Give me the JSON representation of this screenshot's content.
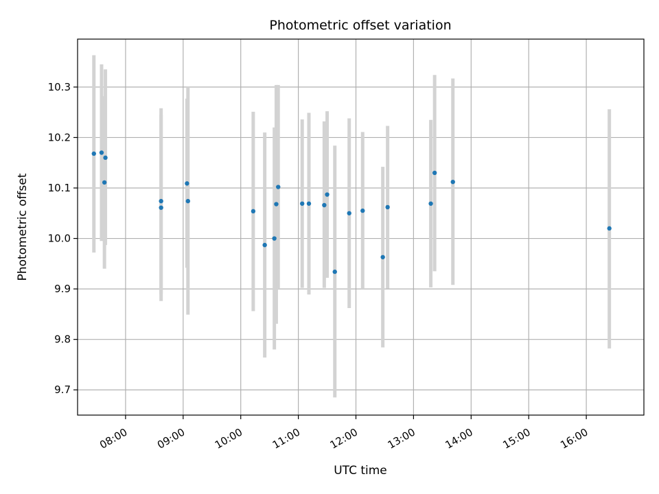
{
  "chart_data": {
    "type": "scatter",
    "title": "Photometric offset variation",
    "xlabel": "UTC time",
    "ylabel": "Photometric offset",
    "x_ticks": [
      "08:00",
      "09:00",
      "10:00",
      "11:00",
      "12:00",
      "13:00",
      "14:00",
      "15:00",
      "16:00"
    ],
    "y_ticks": [
      "9.7",
      "9.8",
      "9.9",
      "10.0",
      "10.1",
      "10.2",
      "10.3"
    ],
    "xlim": [
      "07:10",
      "17:00"
    ],
    "ylim": [
      9.65,
      10.395
    ],
    "grid": true,
    "points": [
      {
        "x": "07:27",
        "y": 10.168,
        "lo": 9.972,
        "hi": 10.363
      },
      {
        "x": "07:35",
        "y": 10.17,
        "lo": 9.995,
        "hi": 10.345
      },
      {
        "x": "07:38",
        "y": 10.111,
        "lo": 9.94,
        "hi": 10.282
      },
      {
        "x": "07:39",
        "y": 10.16,
        "lo": 9.987,
        "hi": 10.335
      },
      {
        "x": "08:37",
        "y": 10.061,
        "lo": 9.876,
        "hi": 10.245
      },
      {
        "x": "08:37",
        "y": 10.074,
        "lo": 9.89,
        "hi": 10.258
      },
      {
        "x": "09:04",
        "y": 10.109,
        "lo": 9.942,
        "hi": 10.277
      },
      {
        "x": "09:05",
        "y": 10.074,
        "lo": 9.849,
        "hi": 10.3
      },
      {
        "x": "10:13",
        "y": 10.054,
        "lo": 9.856,
        "hi": 10.251
      },
      {
        "x": "10:25",
        "y": 9.987,
        "lo": 9.764,
        "hi": 10.21
      },
      {
        "x": "10:35",
        "y": 10.0,
        "lo": 9.78,
        "hi": 10.22
      },
      {
        "x": "10:37",
        "y": 10.068,
        "lo": 9.831,
        "hi": 10.304
      },
      {
        "x": "10:39",
        "y": 10.102,
        "lo": 9.9,
        "hi": 10.304
      },
      {
        "x": "11:04",
        "y": 10.069,
        "lo": 9.902,
        "hi": 10.236
      },
      {
        "x": "11:11",
        "y": 10.069,
        "lo": 9.889,
        "hi": 10.249
      },
      {
        "x": "11:27",
        "y": 10.066,
        "lo": 9.902,
        "hi": 10.232
      },
      {
        "x": "11:30",
        "y": 10.087,
        "lo": 9.922,
        "hi": 10.252
      },
      {
        "x": "11:38",
        "y": 9.934,
        "lo": 9.685,
        "hi": 10.184
      },
      {
        "x": "11:53",
        "y": 10.05,
        "lo": 9.862,
        "hi": 10.238
      },
      {
        "x": "12:07",
        "y": 10.055,
        "lo": 9.9,
        "hi": 10.211
      },
      {
        "x": "12:28",
        "y": 9.963,
        "lo": 9.784,
        "hi": 10.142
      },
      {
        "x": "12:33",
        "y": 10.062,
        "lo": 9.901,
        "hi": 10.223
      },
      {
        "x": "13:18",
        "y": 10.069,
        "lo": 9.903,
        "hi": 10.235
      },
      {
        "x": "13:22",
        "y": 10.13,
        "lo": 9.935,
        "hi": 10.324
      },
      {
        "x": "13:41",
        "y": 10.112,
        "lo": 9.908,
        "hi": 10.317
      },
      {
        "x": "16:24",
        "y": 10.02,
        "lo": 9.782,
        "hi": 10.256
      }
    ],
    "colors": {
      "point": "#1f77b4",
      "errorbar": "#d3d3d3",
      "grid": "#b0b0b0",
      "axes": "#000000"
    }
  }
}
